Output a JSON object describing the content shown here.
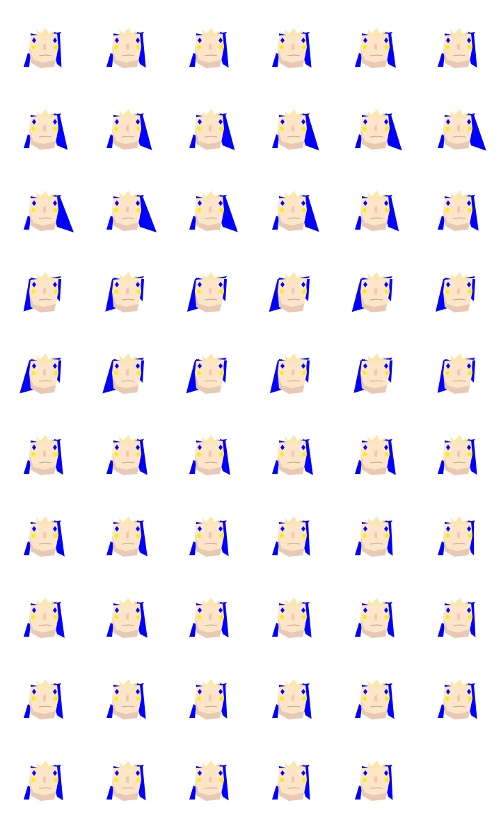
{
  "sprite_sheet": {
    "columns": 6,
    "frame_count": 59,
    "colors": {
      "background": "#ffffff",
      "skin": "#fde5c8",
      "skin_shadow": "#e8c9b4",
      "hair": "#0000ff",
      "hair_highlight": "#fbe7b0",
      "blush": "#ffee00",
      "eye": "#0000ff",
      "mouth": "#7a5a50",
      "nose": "#f2b8a8"
    },
    "frames": [
      {
        "hair_side": "right",
        "tail": 0.2
      },
      {
        "hair_side": "right",
        "tail": 0.3
      },
      {
        "hair_side": "right",
        "tail": 0.3
      },
      {
        "hair_side": "right",
        "tail": 0.3
      },
      {
        "hair_side": "right",
        "tail": 0.4
      },
      {
        "hair_side": "right",
        "tail": 0.3
      },
      {
        "hair_side": "right",
        "tail": 0.6
      },
      {
        "hair_side": "right",
        "tail": 0.7
      },
      {
        "hair_side": "right",
        "tail": 0.7
      },
      {
        "hair_side": "right",
        "tail": 0.8
      },
      {
        "hair_side": "right",
        "tail": 0.8
      },
      {
        "hair_side": "right",
        "tail": 0.9
      },
      {
        "hair_side": "right",
        "tail": 1.0
      },
      {
        "hair_side": "right",
        "tail": 1.0
      },
      {
        "hair_side": "right",
        "tail": 0.9
      },
      {
        "hair_side": "right",
        "tail": 0.8
      },
      {
        "hair_side": "right",
        "tail": 0.6
      },
      {
        "hair_side": "right",
        "tail": 0.4
      },
      {
        "hair_side": "left",
        "tail": 0.3
      },
      {
        "hair_side": "left",
        "tail": 0.4
      },
      {
        "hair_side": "left",
        "tail": 0.5
      },
      {
        "hair_side": "left",
        "tail": 0.6
      },
      {
        "hair_side": "left",
        "tail": 0.6
      },
      {
        "hair_side": "left",
        "tail": 0.5
      },
      {
        "hair_side": "left",
        "tail": 0.7
      },
      {
        "hair_side": "left",
        "tail": 0.7
      },
      {
        "hair_side": "left",
        "tail": 0.6
      },
      {
        "hair_side": "left",
        "tail": 0.5
      },
      {
        "hair_side": "left",
        "tail": 0.4
      },
      {
        "hair_side": "left",
        "tail": 0.3
      },
      {
        "hair_side": "right",
        "tail": 0.3
      },
      {
        "hair_side": "right",
        "tail": 0.4
      },
      {
        "hair_side": "right",
        "tail": 0.4
      },
      {
        "hair_side": "right",
        "tail": 0.4
      },
      {
        "hair_side": "right",
        "tail": 0.4
      },
      {
        "hair_side": "right",
        "tail": 0.3
      },
      {
        "hair_side": "right",
        "tail": 0.4
      },
      {
        "hair_side": "right",
        "tail": 0.4
      },
      {
        "hair_side": "right",
        "tail": 0.3
      },
      {
        "hair_side": "right",
        "tail": 0.2
      },
      {
        "hair_side": "right",
        "tail": 0.2
      },
      {
        "hair_side": "right",
        "tail": 0.1
      },
      {
        "hair_side": "right",
        "tail": 0.4
      },
      {
        "hair_side": "right",
        "tail": 0.4
      },
      {
        "hair_side": "right",
        "tail": 0.3
      },
      {
        "hair_side": "right",
        "tail": 0.3
      },
      {
        "hair_side": "right",
        "tail": 0.3
      },
      {
        "hair_side": "right",
        "tail": 0.2
      },
      {
        "hair_side": "right",
        "tail": 0.3
      },
      {
        "hair_side": "right",
        "tail": 0.3
      },
      {
        "hair_side": "right",
        "tail": 0.2
      },
      {
        "hair_side": "right",
        "tail": 0.3
      },
      {
        "hair_side": "right",
        "tail": 0.3
      },
      {
        "hair_side": "right",
        "tail": 0.3
      },
      {
        "hair_side": "right",
        "tail": 0.3
      },
      {
        "hair_side": "right",
        "tail": 0.3
      },
      {
        "hair_side": "right",
        "tail": 0.3
      },
      {
        "hair_side": "right",
        "tail": 0.2
      },
      {
        "hair_side": "right",
        "tail": 0.2
      }
    ]
  }
}
